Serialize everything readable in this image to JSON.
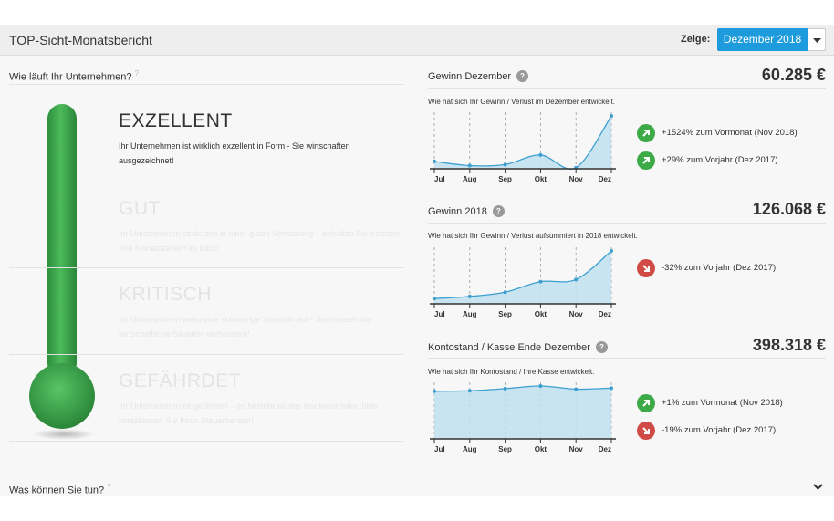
{
  "header": {
    "title": "TOP-Sicht-Monatsbericht",
    "show_label": "Zeige:",
    "selected_month": "Dezember 2018"
  },
  "left": {
    "question": "Wie läuft Ihr Unternehmen?",
    "question_mark": "?",
    "statuses": [
      {
        "title": "EXZELLENT",
        "desc1": "Ihr Unternehmen ist wirklich exzellent in Form - Sie wirtschaften",
        "desc2": "ausgezeichnet!",
        "active": true
      },
      {
        "title": "GUT",
        "desc1": "Ihr Unternehmen ist derzeit in einer guten Verfassung – behalten Sie trotzdem",
        "desc2": "Ihre Monatszahlen im Blick!",
        "active": false
      },
      {
        "title": "KRITISCH",
        "desc1": "Ihr Unternehmen weist eine schwierige Situation auf - Sie müssen die",
        "desc2": "wirtschaftliche Situation verbessern!",
        "active": false
      },
      {
        "title": "GEFÄHRDET",
        "desc1": "Ihr Unternehmen ist gefährdet – es besteht akutes Insolvenzrisiko, bitte",
        "desc2": "kontaktieren Sie Ihren Steuerberater!",
        "active": false
      }
    ],
    "thermometer_level": "EXZELLENT",
    "bottom_question": "Was können Sie tun?",
    "bottom_question_mark": "?"
  },
  "sections": [
    {
      "title": "Gewinn Dezember",
      "help": "?",
      "value": "60.285 €",
      "subtitle": "Wie hat sich Ihr Gewinn / Verlust im Dezember entwickelt.",
      "comparisons": [
        {
          "direction": "up",
          "text": "+1524% zum Vormonat (Nov 2018)"
        },
        {
          "direction": "up",
          "text": "+29% zum Vorjahr (Dez 2017)"
        }
      ]
    },
    {
      "title": "Gewinn 2018",
      "help": "?",
      "value": "126.068 €",
      "subtitle": "Wie hat sich Ihr Gewinn / Verlust aufsummiert in 2018 entwickelt.",
      "comparisons": [
        {
          "direction": "down",
          "text": "-32% zum Vorjahr (Dez 2017)"
        }
      ]
    },
    {
      "title": "Kontostand / Kasse Ende Dezember",
      "help": "?",
      "value": "398.318 €",
      "subtitle": "Wie hat sich Ihr Kontostand / Ihre Kasse entwickelt.",
      "comparisons": [
        {
          "direction": "up",
          "text": "+1% zum Vormonat (Nov 2018)"
        },
        {
          "direction": "down",
          "text": "-19% zum Vorjahr (Dez 2017)"
        }
      ]
    }
  ],
  "colors": {
    "accent": "#1e9bdc",
    "area_fill": "#bfe0ee",
    "line": "#3d9fd1",
    "positive": "#3daa48",
    "negative": "#d04b46",
    "thermometer": "#3aa54a"
  },
  "chart_data": [
    {
      "type": "area",
      "categories": [
        "Jul",
        "Aug",
        "Sep",
        "Okt",
        "Nov",
        "Dez"
      ],
      "series": [
        {
          "values": [
            0.14,
            0.06,
            0.08,
            0.26,
            0.02,
            1.0
          ]
        }
      ],
      "ylim": [
        0,
        1
      ],
      "grid": "vertical-dashed"
    },
    {
      "type": "area",
      "categories": [
        "Jul",
        "Aug",
        "Sep",
        "Okt",
        "Nov",
        "Dez"
      ],
      "series": [
        {
          "values": [
            0.1,
            0.14,
            0.22,
            0.42,
            0.46,
            1.0
          ]
        }
      ],
      "ylim": [
        0,
        1
      ],
      "grid": "vertical-dashed"
    },
    {
      "type": "area",
      "categories": [
        "Jul",
        "Aug",
        "Sep",
        "Okt",
        "Nov",
        "Dez"
      ],
      "series": [
        {
          "values": [
            0.9,
            0.91,
            0.95,
            1.0,
            0.94,
            0.96
          ]
        }
      ],
      "ylim": [
        0,
        1
      ],
      "grid": "vertical-dashed"
    }
  ]
}
